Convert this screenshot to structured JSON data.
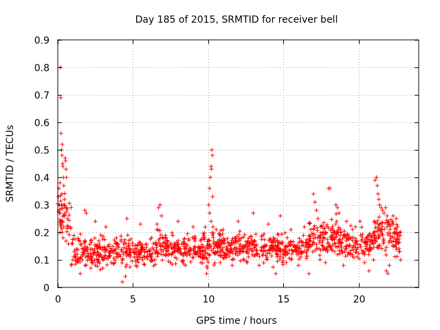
{
  "chart_data": {
    "type": "scatter",
    "title": "Day 185 of 2015, SRMTID for receiver bell",
    "xlabel": "GPS time / hours",
    "ylabel": "SRMTID / TECUs",
    "xlim": [
      0,
      24
    ],
    "ylim": [
      0,
      0.9
    ],
    "xticks": [
      0,
      5,
      10,
      15,
      20
    ],
    "xtick_labels": [
      "0",
      "5",
      "10",
      "15",
      "20"
    ],
    "yticks": [
      0,
      0.1,
      0.2,
      0.3,
      0.4,
      0.5,
      0.6,
      0.7,
      0.8,
      0.9
    ],
    "ytick_labels": [
      "0",
      "0.1",
      "0.2",
      "0.3",
      "0.4",
      "0.5",
      "0.6",
      "0.7",
      "0.8",
      "0.9"
    ],
    "grid": true,
    "marker": "+",
    "series_color": "#ff0000",
    "series": [
      {
        "name": "SRMTID",
        "points": [
          [
            0.05,
            0.33
          ],
          [
            0.08,
            0.36
          ],
          [
            0.1,
            0.3
          ],
          [
            0.12,
            0.27
          ],
          [
            0.15,
            0.38
          ],
          [
            0.18,
            0.8
          ],
          [
            0.2,
            0.69
          ],
          [
            0.22,
            0.56
          ],
          [
            0.25,
            0.5
          ],
          [
            0.28,
            0.48
          ],
          [
            0.3,
            0.52
          ],
          [
            0.32,
            0.45
          ],
          [
            0.35,
            0.44
          ],
          [
            0.38,
            0.4
          ],
          [
            0.4,
            0.37
          ],
          [
            0.42,
            0.3
          ],
          [
            0.45,
            0.32
          ],
          [
            0.5,
            0.47
          ],
          [
            0.52,
            0.46
          ],
          [
            0.55,
            0.43
          ],
          [
            0.58,
            0.4
          ],
          [
            0.6,
            0.29
          ],
          [
            0.65,
            0.25
          ],
          [
            0.7,
            0.22
          ],
          [
            0.3,
            0.2
          ],
          [
            0.35,
            0.18
          ],
          [
            0.4,
            0.22
          ],
          [
            0.45,
            0.26
          ],
          [
            0.15,
            0.2
          ],
          [
            0.2,
            0.24
          ],
          [
            0.25,
            0.3
          ],
          [
            0.28,
            0.34
          ],
          [
            10.1,
            0.36
          ],
          [
            10.15,
            0.4
          ],
          [
            10.2,
            0.44
          ],
          [
            10.22,
            0.43
          ],
          [
            10.25,
            0.5
          ],
          [
            10.28,
            0.48
          ],
          [
            10.3,
            0.33
          ],
          [
            10.05,
            0.3
          ],
          [
            10.1,
            0.27
          ],
          [
            10.2,
            0.24
          ],
          [
            10.32,
            0.22
          ],
          [
            17.0,
            0.34
          ],
          [
            17.1,
            0.31
          ],
          [
            17.2,
            0.28
          ],
          [
            17.3,
            0.25
          ],
          [
            18.0,
            0.36
          ],
          [
            18.1,
            0.36
          ],
          [
            18.5,
            0.3
          ],
          [
            18.6,
            0.29
          ],
          [
            18.7,
            0.27
          ],
          [
            21.1,
            0.39
          ],
          [
            21.2,
            0.4
          ],
          [
            21.25,
            0.37
          ],
          [
            21.3,
            0.34
          ],
          [
            21.35,
            0.32
          ],
          [
            21.4,
            0.3
          ],
          [
            21.5,
            0.29
          ],
          [
            21.6,
            0.28
          ],
          [
            21.7,
            0.27
          ],
          [
            21.8,
            0.29
          ],
          [
            21.9,
            0.26
          ],
          [
            22.0,
            0.24
          ],
          [
            22.3,
            0.26
          ],
          [
            22.5,
            0.25
          ],
          [
            22.6,
            0.22
          ],
          [
            22.7,
            0.14
          ],
          [
            21.85,
            0.06
          ],
          [
            21.95,
            0.05
          ],
          [
            22.05,
            0.08
          ],
          [
            1.8,
            0.28
          ],
          [
            1.9,
            0.27
          ],
          [
            2.5,
            0.24
          ],
          [
            3.2,
            0.22
          ],
          [
            4.6,
            0.25
          ],
          [
            5.5,
            0.23
          ],
          [
            6.7,
            0.29
          ],
          [
            6.8,
            0.3
          ],
          [
            6.9,
            0.26
          ],
          [
            6.6,
            0.23
          ],
          [
            9.9,
            0.05
          ],
          [
            9.95,
            0.07
          ],
          [
            1.5,
            0.05
          ],
          [
            4.3,
            0.02
          ],
          [
            4.5,
            0.04
          ],
          [
            12.0,
            0.24
          ],
          [
            13.0,
            0.27
          ],
          [
            14.0,
            0.23
          ],
          [
            14.8,
            0.26
          ],
          [
            14.5,
            0.05
          ],
          [
            16.4,
            0.22
          ],
          [
            16.7,
            0.05
          ],
          [
            17.5,
            0.22
          ],
          [
            19.2,
            0.24
          ],
          [
            19.8,
            0.22
          ],
          [
            20.1,
            0.24
          ],
          [
            20.7,
            0.06
          ],
          [
            8.0,
            0.24
          ],
          [
            9.0,
            0.22
          ],
          [
            11.0,
            0.21
          ],
          [
            15.5,
            0.21
          ],
          [
            3.8,
            0.09
          ],
          [
            2.2,
            0.07
          ],
          [
            5.2,
            0.08
          ],
          [
            7.5,
            0.09
          ],
          [
            8.5,
            0.08
          ],
          [
            10.8,
            0.09
          ],
          [
            11.6,
            0.08
          ],
          [
            12.6,
            0.09
          ],
          [
            13.4,
            0.08
          ],
          [
            15.2,
            0.09
          ],
          [
            16.0,
            0.08
          ],
          [
            17.8,
            0.09
          ],
          [
            19.0,
            0.08
          ],
          [
            20.4,
            0.09
          ],
          [
            21.0,
            0.1
          ],
          [
            22.8,
            0.1
          ],
          [
            1.0,
            0.1
          ],
          [
            0.9,
            0.08
          ],
          [
            1.2,
            0.12
          ],
          [
            1.4,
            0.1
          ],
          [
            2.0,
            0.11
          ],
          [
            2.8,
            0.12
          ],
          [
            3.0,
            0.1
          ],
          [
            3.5,
            0.13
          ],
          [
            4.0,
            0.11
          ],
          [
            4.8,
            0.12
          ],
          [
            5.8,
            0.13
          ],
          [
            6.2,
            0.11
          ],
          [
            7.0,
            0.15
          ],
          [
            7.8,
            0.14
          ],
          [
            8.8,
            0.12
          ],
          [
            9.5,
            0.13
          ],
          [
            10.6,
            0.15
          ],
          [
            11.3,
            0.14
          ],
          [
            12.3,
            0.15
          ],
          [
            13.7,
            0.13
          ],
          [
            14.3,
            0.14
          ],
          [
            16.2,
            0.13
          ],
          [
            17.6,
            0.17
          ],
          [
            18.3,
            0.2
          ],
          [
            19.5,
            0.18
          ],
          [
            20.2,
            0.17
          ],
          [
            21.6,
            0.19
          ],
          [
            22.4,
            0.18
          ]
        ]
      }
    ],
    "dense_bands": [
      {
        "x_start": 0.0,
        "x_end": 0.9,
        "y_center": 0.25,
        "spread": 0.07,
        "count": 40
      },
      {
        "x_start": 0.9,
        "x_end": 3.0,
        "y_center": 0.13,
        "spread": 0.05,
        "count": 120
      },
      {
        "x_start": 3.0,
        "x_end": 6.5,
        "y_center": 0.13,
        "spread": 0.045,
        "count": 190
      },
      {
        "x_start": 6.5,
        "x_end": 7.2,
        "y_center": 0.16,
        "spread": 0.055,
        "count": 40
      },
      {
        "x_start": 7.2,
        "x_end": 9.8,
        "y_center": 0.14,
        "spread": 0.045,
        "count": 150
      },
      {
        "x_start": 9.8,
        "x_end": 10.4,
        "y_center": 0.15,
        "spread": 0.06,
        "count": 35
      },
      {
        "x_start": 10.4,
        "x_end": 13.0,
        "y_center": 0.15,
        "spread": 0.045,
        "count": 160
      },
      {
        "x_start": 13.0,
        "x_end": 16.7,
        "y_center": 0.14,
        "spread": 0.045,
        "count": 200
      },
      {
        "x_start": 16.7,
        "x_end": 18.8,
        "y_center": 0.18,
        "spread": 0.06,
        "count": 130
      },
      {
        "x_start": 18.8,
        "x_end": 21.0,
        "y_center": 0.16,
        "spread": 0.045,
        "count": 120
      },
      {
        "x_start": 21.0,
        "x_end": 22.8,
        "y_center": 0.19,
        "spread": 0.06,
        "count": 110
      }
    ]
  }
}
